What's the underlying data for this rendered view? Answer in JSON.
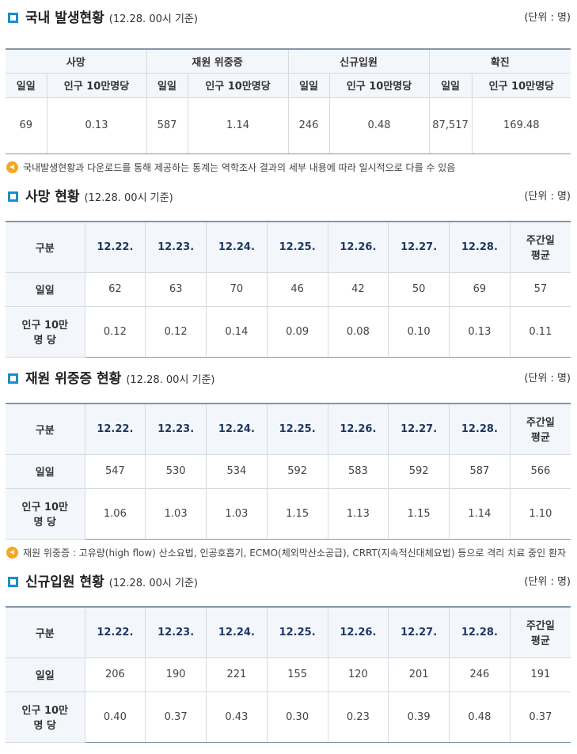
{
  "domestic": {
    "title": "국내 발생현황",
    "base": "(12.28. 00시 기준)",
    "unit": "(단위 : 명)",
    "groups": [
      "사망",
      "재원 위중증",
      "신규입원",
      "확진"
    ],
    "sub_daily": "일일",
    "sub_per100k": "인구 10만명당",
    "values": [
      {
        "daily": "69",
        "per100k": "0.13"
      },
      {
        "daily": "587",
        "per100k": "1.14"
      },
      {
        "daily": "246",
        "per100k": "0.48"
      },
      {
        "daily": "87,517",
        "per100k": "169.48"
      }
    ]
  },
  "note1": "국내발생현황과 다운로드를 통해 제공하는 통계는 역학조사 결과의 세부 내용에 따라 일시적으로 다를 수 있음",
  "note2": "재원 위중증 : 고유량(high flow) 산소요법, 인공호흡기, ECMO(체외막산소공급), CRRT(지속적신대체요법) 등으로 격리 치료 중인 환자",
  "common": {
    "col_gubun": "구분",
    "dates": [
      "12.22.",
      "12.23.",
      "12.24.",
      "12.25.",
      "12.26.",
      "12.27.",
      "12.28."
    ],
    "avg_line1": "주간일",
    "avg_line2": "평균",
    "row_daily": "일일",
    "row_per_line1": "인구 10만",
    "row_per_line2": "명 당"
  },
  "deaths": {
    "title": "사망 현황",
    "base": "(12.28. 00시 기준)",
    "unit": "(단위 : 명)",
    "daily": [
      "62",
      "63",
      "70",
      "46",
      "42",
      "50",
      "69",
      "57"
    ],
    "per100k": [
      "0.12",
      "0.12",
      "0.14",
      "0.09",
      "0.08",
      "0.10",
      "0.13",
      "0.11"
    ]
  },
  "severe": {
    "title": "재원 위중증 현황",
    "base": "(12.28. 00시 기준)",
    "unit": "(단위 : 명)",
    "daily": [
      "547",
      "530",
      "534",
      "592",
      "583",
      "592",
      "587",
      "566"
    ],
    "per100k": [
      "1.06",
      "1.03",
      "1.03",
      "1.15",
      "1.13",
      "1.15",
      "1.14",
      "1.10"
    ]
  },
  "admission": {
    "title": "신규입원 현황",
    "base": "(12.28. 00시 기준)",
    "unit": "(단위 : 명)",
    "daily": [
      "206",
      "190",
      "221",
      "155",
      "120",
      "201",
      "246",
      "191"
    ],
    "per100k": [
      "0.40",
      "0.37",
      "0.43",
      "0.30",
      "0.23",
      "0.39",
      "0.48",
      "0.37"
    ]
  }
}
